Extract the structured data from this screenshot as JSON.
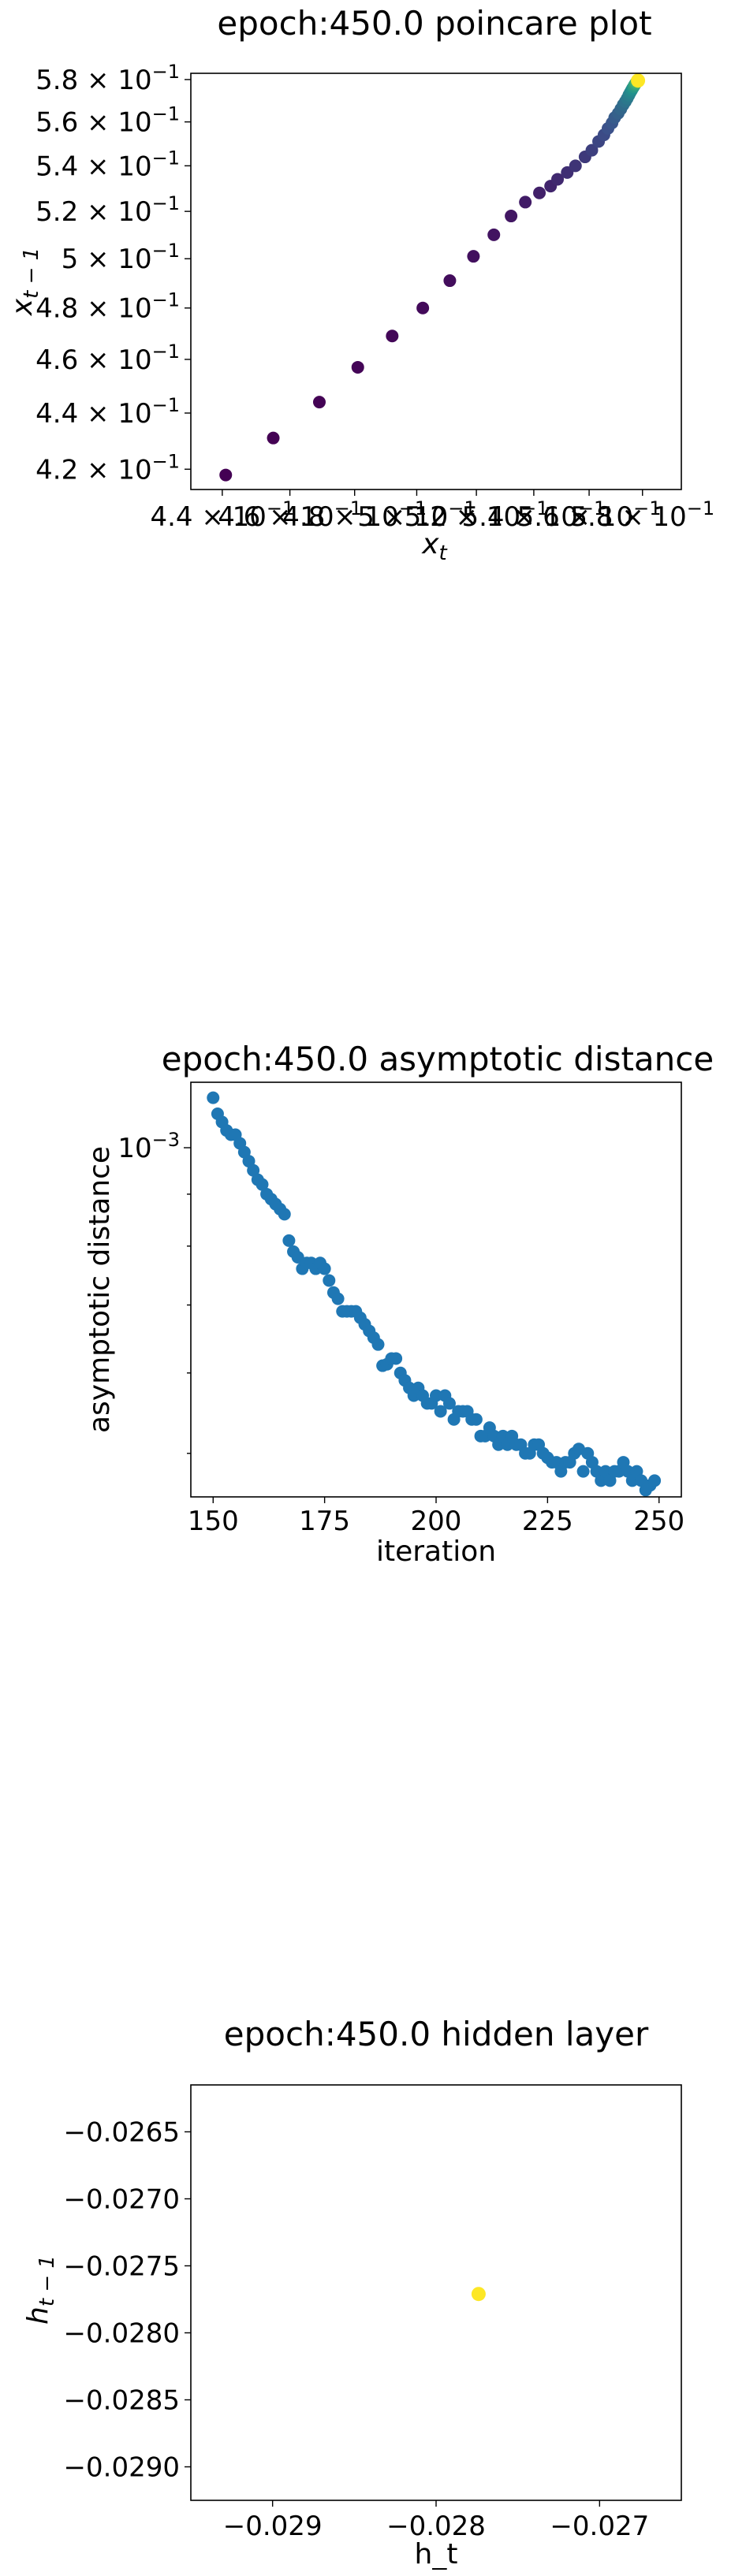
{
  "chart_data": [
    {
      "type": "scatter",
      "title": "epoch:450.0 poincare plot",
      "xlabel": "x_t",
      "ylabel": "x_{t-1}",
      "xscale": "log",
      "yscale": "log",
      "colormap": "viridis",
      "xlim": [
        0.431,
        0.595
      ],
      "ylim": [
        0.413,
        0.583
      ],
      "x_tick_labels": [
        "4.4 × 10^-1",
        "4.6 × 10^-1",
        "4.8 × 10^-1",
        "5 × 10^-1",
        "5.2 × 10^-1",
        "5.4 × 10^-1",
        "5.6 × 10^-1",
        "5.8 × 10^-1"
      ],
      "x_ticks": [
        0.44,
        0.46,
        0.48,
        0.5,
        0.52,
        0.54,
        0.56,
        0.58
      ],
      "y_tick_labels": [
        "4.2 × 10^-1",
        "4.4 × 10^-1",
        "4.6 × 10^-1",
        "4.8 × 10^-1",
        "5 × 10^-1",
        "5.2 × 10^-1",
        "5.4 × 10^-1",
        "5.6 × 10^-1",
        "5.8 × 10^-1"
      ],
      "y_ticks": [
        0.42,
        0.44,
        0.46,
        0.48,
        0.5,
        0.52,
        0.54,
        0.56,
        0.58
      ],
      "x": [
        0.441,
        0.455,
        0.469,
        0.481,
        0.492,
        0.502,
        0.511,
        0.519,
        0.526,
        0.532,
        0.537,
        0.542,
        0.546,
        0.5485,
        0.552,
        0.555,
        0.5585,
        0.561,
        0.5635,
        0.5655,
        0.567,
        0.5685,
        0.5695,
        0.5708,
        0.5718,
        0.5727,
        0.5735,
        0.5742,
        0.5748,
        0.5753,
        0.5758,
        0.5762,
        0.5766,
        0.5769,
        0.5772,
        0.5775,
        0.5777,
        0.5779,
        0.5781,
        0.5783
      ],
      "y": [
        0.418,
        0.431,
        0.444,
        0.457,
        0.469,
        0.48,
        0.491,
        0.501,
        0.51,
        0.518,
        0.524,
        0.528,
        0.531,
        0.534,
        0.537,
        0.54,
        0.544,
        0.547,
        0.551,
        0.554,
        0.557,
        0.5595,
        0.562,
        0.564,
        0.566,
        0.568,
        0.5695,
        0.571,
        0.5725,
        0.5737,
        0.5748,
        0.5757,
        0.5765,
        0.5772,
        0.5778,
        0.5783,
        0.5787,
        0.579,
        0.5793,
        0.5795
      ]
    },
    {
      "type": "scatter",
      "title": "epoch:450.0 asymptotic distance",
      "xlabel": "iteration",
      "ylabel": "asymptotic distance",
      "yscale": "log",
      "color": "#1f77b4",
      "xlim": [
        145,
        255
      ],
      "ylim": [
        0.000453,
        0.00116
      ],
      "x_ticks": [
        150,
        175,
        200,
        225,
        250
      ],
      "x_tick_labels": [
        "150",
        "175",
        "200",
        "225",
        "250"
      ],
      "y_major_tick_labels": [
        "10^-3"
      ],
      "y_major_ticks": [
        0.001
      ],
      "x": [
        150,
        151,
        152,
        153,
        154,
        155,
        156,
        157,
        158,
        159,
        160,
        161,
        162,
        163,
        164,
        165,
        166,
        167,
        168,
        169,
        170,
        171,
        172,
        173,
        174,
        175,
        176,
        177,
        178,
        179,
        180,
        181,
        182,
        183,
        184,
        185,
        186,
        187,
        188,
        189,
        190,
        191,
        192,
        193,
        194,
        195,
        196,
        197,
        198,
        199,
        200,
        201,
        202,
        203,
        204,
        205,
        206,
        207,
        208,
        209,
        210,
        211,
        212,
        213,
        214,
        215,
        216,
        217,
        218,
        219,
        220,
        221,
        222,
        223,
        224,
        225,
        226,
        227,
        228,
        229,
        230,
        231,
        232,
        233,
        234,
        235,
        236,
        237,
        238,
        239,
        240,
        241,
        242,
        243,
        244,
        245,
        246,
        247,
        248,
        249
      ],
      "y": [
        0.00112,
        0.00108,
        0.00106,
        0.00104,
        0.00103,
        0.00103,
        0.00101,
        0.00099,
        0.00097,
        0.00095,
        0.00093,
        0.00092,
        0.0009,
        0.00089,
        0.00088,
        0.00087,
        0.00086,
        0.00081,
        0.00079,
        0.00078,
        0.00076,
        0.00077,
        0.00077,
        0.00076,
        0.00077,
        0.00076,
        0.00074,
        0.00072,
        0.00071,
        0.00069,
        0.00069,
        0.00069,
        0.00069,
        0.00068,
        0.00067,
        0.00066,
        0.00065,
        0.00064,
        0.00061,
        0.000612,
        0.00062,
        0.00062,
        0.0006,
        0.00059,
        0.00058,
        0.00057,
        0.00058,
        0.00057,
        0.00056,
        0.00056,
        0.00057,
        0.00055,
        0.00057,
        0.00056,
        0.00054,
        0.00055,
        0.00055,
        0.00055,
        0.00054,
        0.00054,
        0.00052,
        0.00052,
        0.00053,
        0.00052,
        0.00051,
        0.00052,
        0.00051,
        0.00052,
        0.00051,
        0.00051,
        0.0005,
        0.0005,
        0.00051,
        0.00051,
        0.0005,
        0.000495,
        0.00049,
        0.00049,
        0.00048,
        0.00049,
        0.00049,
        0.0005,
        0.000505,
        0.00048,
        0.0005,
        0.00049,
        0.00048,
        0.00047,
        0.00048,
        0.00047,
        0.00048,
        0.00048,
        0.00049,
        0.00048,
        0.00047,
        0.00048,
        0.00047,
        0.00046,
        0.000465,
        0.00047
      ]
    },
    {
      "type": "scatter",
      "title": "epoch:450.0 hidden layer",
      "xlabel": "h_t",
      "ylabel": "h_{t-1}",
      "color": "#fde725",
      "xlim": [
        -0.0295,
        -0.0265
      ],
      "ylim": [
        -0.02925,
        -0.02615
      ],
      "x_ticks": [
        -0.029,
        -0.028,
        -0.027
      ],
      "x_tick_labels": [
        "−0.029",
        "−0.028",
        "−0.027"
      ],
      "y_ticks": [
        -0.0265,
        -0.027,
        -0.0275,
        -0.028,
        -0.0285,
        -0.029
      ],
      "y_tick_labels": [
        "−0.0265",
        "−0.0270",
        "−0.0275",
        "−0.0280",
        "−0.0285",
        "−0.0290"
      ],
      "x": [
        -0.02774
      ],
      "y": [
        -0.02771
      ]
    }
  ]
}
